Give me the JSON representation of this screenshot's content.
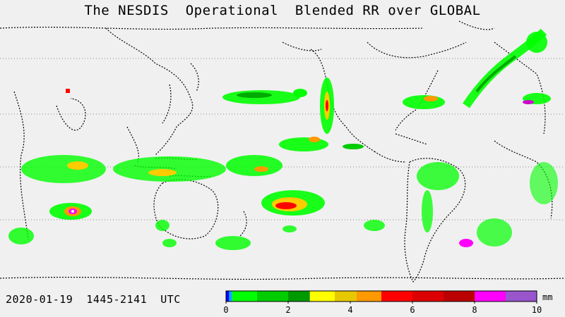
{
  "title": "The NESDIS  Operational  Blended RR over GLOBAL",
  "timestamp": "2020-01-19  1445-2141  UTC",
  "legend": {
    "unit": "mm",
    "min": 0,
    "max": 10,
    "tick_values": [
      "0",
      "2",
      "4",
      "6",
      "8",
      "10"
    ],
    "bins": [
      {
        "from": 0,
        "to": 0.1,
        "color": "#0000ff"
      },
      {
        "from": 0.1,
        "to": 0.2,
        "color": "#00aaff"
      },
      {
        "from": 0.2,
        "to": 1,
        "color": "#00ff00"
      },
      {
        "from": 1,
        "to": 2,
        "color": "#00cc00"
      },
      {
        "from": 2,
        "to": 2.7,
        "color": "#009900"
      },
      {
        "from": 2.7,
        "to": 3.5,
        "color": "#ffff00"
      },
      {
        "from": 3.5,
        "to": 4.2,
        "color": "#e6c800"
      },
      {
        "from": 4.2,
        "to": 5,
        "color": "#ff9900"
      },
      {
        "from": 5,
        "to": 6,
        "color": "#ff0000"
      },
      {
        "from": 6,
        "to": 7,
        "color": "#dd0000"
      },
      {
        "from": 7,
        "to": 8,
        "color": "#bb0000"
      },
      {
        "from": 8,
        "to": 9,
        "color": "#ff00ff"
      },
      {
        "from": 9,
        "to": 10,
        "color": "#9955cc"
      }
    ]
  },
  "map": {
    "projection": "cylindrical, centered on Pacific",
    "lon_range": [
      20,
      380
    ],
    "lat_range": [
      -90,
      90
    ],
    "background_color": "#f0f0f0",
    "coastline_color": "#000000",
    "latitude_guides": [
      "60N",
      "30N",
      "0",
      "30S",
      "60S"
    ]
  }
}
